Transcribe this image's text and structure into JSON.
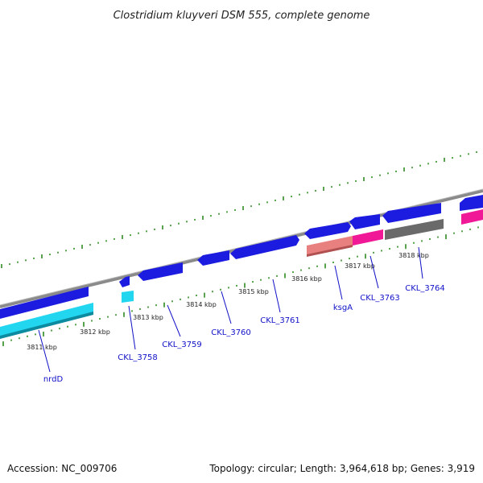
{
  "header": {
    "title": "Clostridium kluyveri DSM 555, complete genome"
  },
  "footer": {
    "accession": "Accession: NC_009706",
    "topology": "Topology: circular; Length: 3,964,618 bp; Genes: 3,919"
  },
  "colors": {
    "backbone": "#8a8a8a",
    "tick": "#2e8b22",
    "label": "#1010c8",
    "gene_blue": "#1c1ce0",
    "gene_cyan": "#22d6f0",
    "gene_salmon": "#e88080",
    "gene_pink": "#f01896",
    "gene_gray": "#6a6a6a"
  },
  "chart_data": {
    "type": "genome-map",
    "unit": "kbp",
    "ticks": [
      {
        "label": "3811 kbp"
      },
      {
        "label": "3812 kbp"
      },
      {
        "label": "3813 kbp"
      },
      {
        "label": "3814 kbp"
      },
      {
        "label": "3815 kbp"
      },
      {
        "label": "3816 kbp"
      },
      {
        "label": "3817 kbp"
      },
      {
        "label": "3818 kbp"
      }
    ],
    "genes": [
      {
        "label": "nrdD"
      },
      {
        "label": "CKL_3758"
      },
      {
        "label": "CKL_3759"
      },
      {
        "label": "CKL_3760"
      },
      {
        "label": "CKL_3761"
      },
      {
        "label": "ksgA"
      },
      {
        "label": "CKL_3763"
      },
      {
        "label": "CKL_3764"
      }
    ]
  }
}
